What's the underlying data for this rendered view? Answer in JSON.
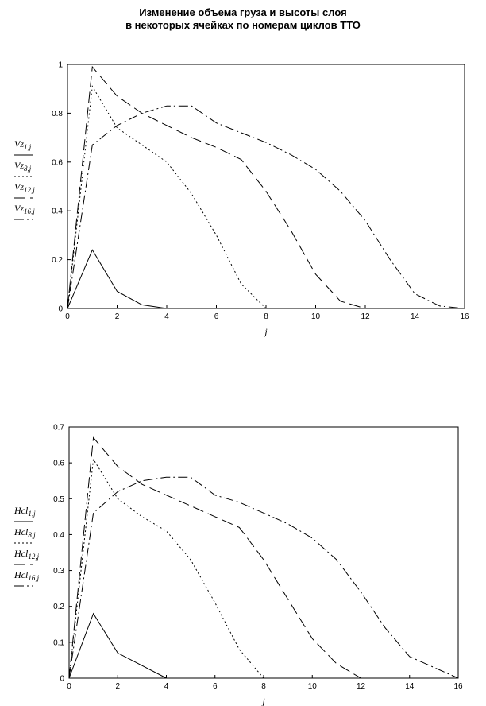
{
  "title_line1": "Изменение объема груза и высоты слоя",
  "title_line2": "в некоторых ячейках по номерам циклов ТТО",
  "chart_data": [
    {
      "type": "line",
      "xlabel": "j",
      "xlim": [
        0,
        16
      ],
      "ylim": [
        0,
        1
      ],
      "xticks": [
        0,
        2,
        4,
        6,
        8,
        10,
        12,
        14,
        16
      ],
      "yticks": [
        0,
        0.2,
        0.4,
        0.6,
        0.8,
        1
      ],
      "x": [
        0,
        1,
        2,
        3,
        4,
        5,
        6,
        7,
        8,
        9,
        10,
        11,
        12,
        13,
        14,
        15,
        16
      ],
      "series": [
        {
          "name": "Vz1,j",
          "base": "Vz",
          "sub": "1,j",
          "dash": "solid",
          "values": [
            0,
            0.24,
            0.07,
            0.015,
            0.0,
            null,
            null,
            null,
            null,
            null,
            null,
            null,
            null,
            null,
            null,
            null,
            null
          ]
        },
        {
          "name": "Vz8,j",
          "base": "Vz",
          "sub": "8,j",
          "dash": "dot",
          "values": [
            0,
            0.91,
            0.74,
            0.67,
            0.6,
            0.47,
            0.3,
            0.1,
            0.0,
            null,
            null,
            null,
            null,
            null,
            null,
            null,
            null
          ]
        },
        {
          "name": "Vz12,j",
          "base": "Vz",
          "sub": "12,j",
          "dash": "dash",
          "values": [
            0,
            0.99,
            0.87,
            0.8,
            0.75,
            0.7,
            0.66,
            0.61,
            0.48,
            0.32,
            0.14,
            0.03,
            0.0,
            null,
            null,
            null,
            null
          ]
        },
        {
          "name": "Vz16,j",
          "base": "Vz",
          "sub": "16,j",
          "dash": "dashdot",
          "values": [
            0,
            0.67,
            0.75,
            0.8,
            0.83,
            0.83,
            0.76,
            0.72,
            0.68,
            0.63,
            0.57,
            0.48,
            0.36,
            0.2,
            0.06,
            0.01,
            0.0
          ]
        }
      ]
    },
    {
      "type": "line",
      "xlabel": "j",
      "xlim": [
        0,
        16
      ],
      "ylim": [
        0,
        0.7
      ],
      "xticks": [
        0,
        2,
        4,
        6,
        8,
        10,
        12,
        14,
        16
      ],
      "yticks": [
        0,
        0.1,
        0.2,
        0.3,
        0.4,
        0.5,
        0.6,
        0.7
      ],
      "x": [
        0,
        1,
        2,
        3,
        4,
        5,
        6,
        7,
        8,
        9,
        10,
        11,
        12,
        13,
        14,
        15,
        16
      ],
      "series": [
        {
          "name": "Hcl1,j",
          "base": "Hcl",
          "sub": "1,j",
          "dash": "solid",
          "values": [
            0,
            0.18,
            0.07,
            0.035,
            0.0,
            null,
            null,
            null,
            null,
            null,
            null,
            null,
            null,
            null,
            null,
            null,
            null
          ]
        },
        {
          "name": "Hcl8,j",
          "base": "Hcl",
          "sub": "8,j",
          "dash": "dot",
          "values": [
            0,
            0.61,
            0.5,
            0.45,
            0.41,
            0.33,
            0.21,
            0.08,
            0.0,
            null,
            null,
            null,
            null,
            null,
            null,
            null,
            null
          ]
        },
        {
          "name": "Hcl12,j",
          "base": "Hcl",
          "sub": "12,j",
          "dash": "dash",
          "values": [
            0,
            0.67,
            0.59,
            0.54,
            0.51,
            0.48,
            0.45,
            0.42,
            0.33,
            0.22,
            0.11,
            0.04,
            0.0,
            null,
            null,
            null,
            null
          ]
        },
        {
          "name": "Hcl16,j",
          "base": "Hcl",
          "sub": "16,j",
          "dash": "dashdot",
          "values": [
            0,
            0.46,
            0.52,
            0.55,
            0.56,
            0.56,
            0.51,
            0.49,
            0.46,
            0.43,
            0.39,
            0.33,
            0.24,
            0.14,
            0.06,
            0.03,
            0.0
          ]
        }
      ]
    }
  ]
}
